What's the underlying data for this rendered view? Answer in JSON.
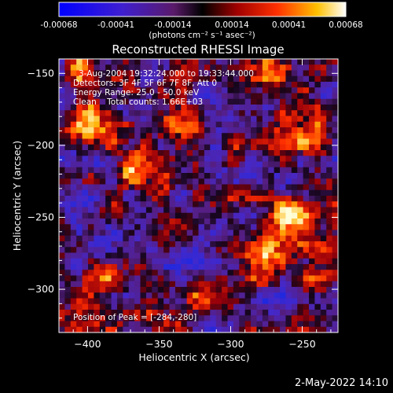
{
  "colorbar": {
    "tick_labels": [
      "-0.00068",
      "-0.00041",
      "-0.00014",
      "0.00014",
      "0.00041",
      "0.00068"
    ],
    "range": [
      -0.00068,
      0.00068
    ],
    "units_label": "(photons cm⁻² s⁻¹ asec⁻²)"
  },
  "chart_data": {
    "type": "heatmap",
    "title": "Reconstructed RHESSI Image",
    "xlabel": "Heliocentric X (arcsec)",
    "ylabel": "Heliocentric Y (arcsec)",
    "xlim": [
      -420,
      -225
    ],
    "ylim": [
      -330,
      -140
    ],
    "x_ticks": [
      -400,
      -350,
      -300,
      -250
    ],
    "y_ticks": [
      -150,
      -200,
      -250,
      -300
    ],
    "x_tick_labels": [
      "−400",
      "−350",
      "−300",
      "−250"
    ],
    "y_tick_labels": [
      "−150",
      "−200",
      "−250",
      "−300"
    ],
    "annotations": [
      "3-Aug-2004 19:32:24.000 to 19:33:44.000",
      "Detectors: 3F 4F 5F 6F 7F 8F, Att 0",
      "Energy Range: 25.0 - 50.0 keV",
      "Clean    Total counts: 1.66E+03"
    ],
    "peak_label": "Position of Peak = [-284,-280]",
    "peak_position": [
      -284,
      -280
    ],
    "total_counts": 1660,
    "energy_range_kev": [
      25.0,
      50.0
    ],
    "bright_sources": [
      {
        "x": -283,
        "y": -275,
        "intensity": 1.0
      },
      {
        "x": -400,
        "y": -190,
        "intensity": 0.9
      },
      {
        "x": -365,
        "y": -215,
        "intensity": 0.8
      },
      {
        "x": -335,
        "y": -185,
        "intensity": 0.75
      },
      {
        "x": -260,
        "y": -250,
        "intensity": 0.8
      },
      {
        "x": -245,
        "y": -190,
        "intensity": 0.7
      },
      {
        "x": -310,
        "y": -300,
        "intensity": 0.75
      },
      {
        "x": -395,
        "y": -300,
        "intensity": 0.65
      },
      {
        "x": -265,
        "y": -150,
        "intensity": 0.6
      },
      {
        "x": -235,
        "y": -290,
        "intensity": 0.7
      },
      {
        "x": -405,
        "y": -150,
        "intensity": 0.6
      }
    ]
  },
  "footer": {
    "datetime": "2-May-2022 14:10"
  }
}
